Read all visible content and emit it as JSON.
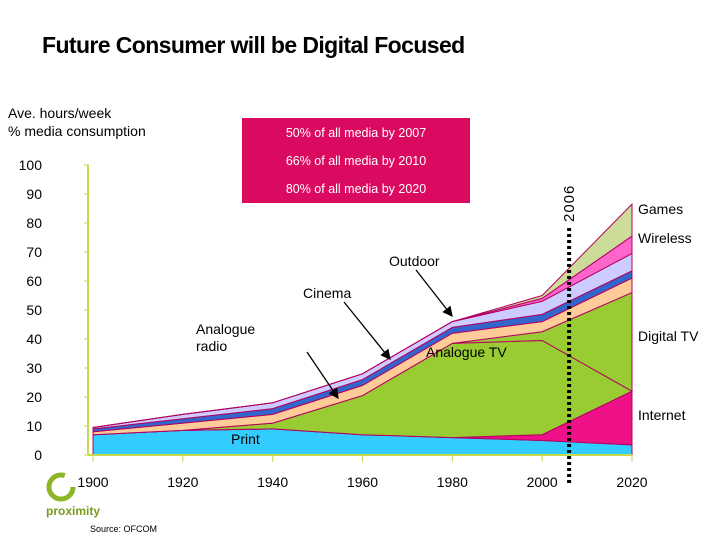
{
  "title": "Future Consumer will be Digital Focused",
  "callout": {
    "lines": [
      "50% of all media by 2007",
      "66% of all media by 2010",
      "80% of all media by 2020"
    ],
    "color": "#d90a5f"
  },
  "footer": {
    "brand": "proximity",
    "source": "Source: OFCOM"
  },
  "colors": {
    "accent_pink": "#d90a5f",
    "axis_green": "#c6d84f"
  },
  "chart_data": {
    "type": "area",
    "title": "Future Consumer will be Digital Focused",
    "ylabel": "Ave. hours/week\n%  media consumption",
    "ylabel_lines": [
      "Ave. hours/week",
      "%  media consumption"
    ],
    "xlabel": "",
    "x": [
      1900,
      1920,
      1940,
      1960,
      1980,
      2000,
      2020
    ],
    "xlim": [
      1900,
      2020
    ],
    "ylim": [
      0,
      100
    ],
    "xticks": [
      "1900",
      "1920",
      "1940",
      "1960",
      "1980",
      "2000",
      "2020"
    ],
    "yticks": [
      "0",
      "10",
      "20",
      "30",
      "40",
      "50",
      "60",
      "70",
      "80",
      "90",
      "100"
    ],
    "grid": false,
    "stacked": true,
    "series": [
      {
        "name": "Print",
        "color": "#33ccff",
        "values": [
          7,
          8.5,
          9,
          7,
          6,
          5,
          3.5
        ]
      },
      {
        "name": "Internet",
        "color": "#ee1188",
        "values": [
          0,
          0,
          0,
          0,
          0,
          2,
          18.5
        ]
      },
      {
        "name": "Analogue TV",
        "color": "#99cc33",
        "values": [
          0,
          0,
          2,
          13.5,
          32.5,
          32.5,
          0
        ]
      },
      {
        "name": "Digital TV",
        "color": "#99cc33",
        "values": [
          0,
          0,
          0,
          0,
          0,
          3,
          34
        ]
      },
      {
        "name": "Analogue radio",
        "color": "#ffcc99",
        "values": [
          1,
          2.5,
          3,
          3.5,
          3.5,
          3.5,
          5
        ]
      },
      {
        "name": "Cinema",
        "color": "#3366cc",
        "values": [
          1,
          1.5,
          2,
          2,
          2,
          2.5,
          2.5
        ]
      },
      {
        "name": "Outdoor",
        "color": "#ccccff",
        "values": [
          0.5,
          1.5,
          2,
          2,
          2,
          4.5,
          6
        ]
      },
      {
        "name": "Wireless",
        "color": "#ff66cc",
        "values": [
          0,
          0,
          0,
          0,
          0,
          1,
          6
        ]
      },
      {
        "name": "Games",
        "color": "#ccdd99",
        "values": [
          0,
          0,
          0,
          0,
          0,
          1,
          11
        ]
      }
    ],
    "marker": {
      "x": 2006,
      "label": "2006",
      "style": "dotted"
    },
    "annotations": [
      {
        "text": "Games",
        "target": "Games"
      },
      {
        "text": "Wireless",
        "target": "Wireless"
      },
      {
        "text": "Digital TV",
        "target": "Digital TV"
      },
      {
        "text": "Internet",
        "target": "Internet"
      },
      {
        "text": "Outdoor",
        "target": "Outdoor"
      },
      {
        "text": "Cinema",
        "target": "Cinema"
      },
      {
        "text": "Analogue\nradio",
        "lines": [
          "Analogue",
          "radio"
        ],
        "target": "Analogue radio"
      },
      {
        "text": "Analogue TV",
        "target": "Analogue TV"
      },
      {
        "text": "Print",
        "target": "Print"
      }
    ]
  }
}
